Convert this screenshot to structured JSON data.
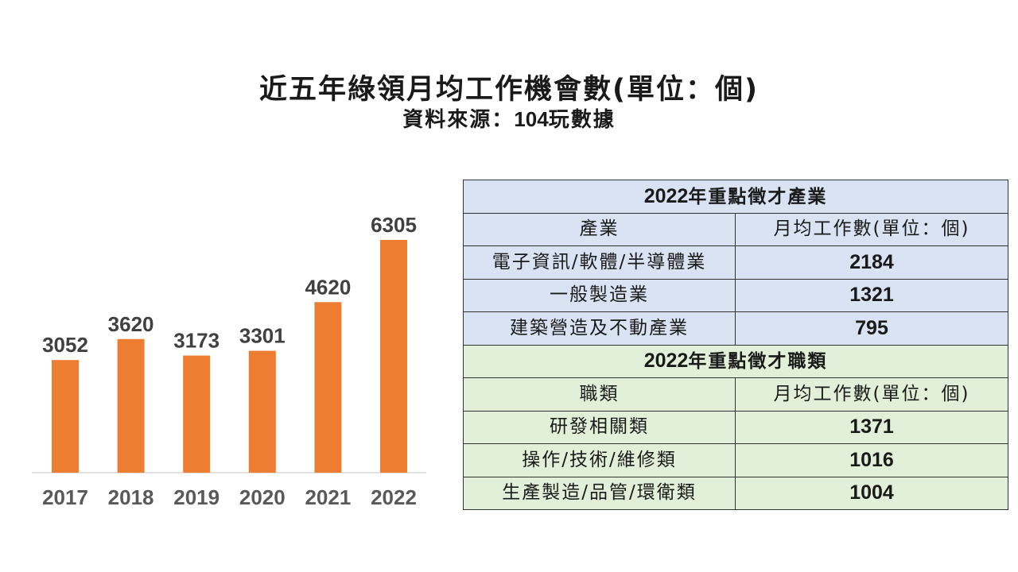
{
  "title": "近五年綠領月均工作機會數(單位：個)",
  "subtitle_prefix": "資料來源：",
  "subtitle_source": "104",
  "subtitle_suffix": "玩數據",
  "chart_data": {
    "type": "bar",
    "categories": [
      "2017",
      "2018",
      "2019",
      "2020",
      "2021",
      "2022"
    ],
    "values": [
      3052,
      3620,
      3173,
      3301,
      4620,
      6305
    ],
    "data_labels": [
      "3052",
      "3620",
      "3173",
      "3301",
      "4620",
      "6305"
    ],
    "bar_color": "#ed7d31",
    "grid": false,
    "legend": "none"
  },
  "table": {
    "industry_section": {
      "title_year": "2022",
      "title_text": "年重點徵才產業",
      "col1": "產業",
      "col2": "月均工作數(單位：個)",
      "rows": [
        {
          "name": "電子資訊/軟體/半導體業",
          "value": "2184"
        },
        {
          "name": "一般製造業",
          "value": "1321"
        },
        {
          "name": "建築營造及不動產業",
          "value": "795"
        }
      ]
    },
    "job_section": {
      "title_year": "2022",
      "title_text": "年重點徵才職類",
      "col1": "職類",
      "col2": "月均工作數(單位：個)",
      "rows": [
        {
          "name": "研發相關類",
          "value": "1371"
        },
        {
          "name": "操作/技術/維修類",
          "value": "1016"
        },
        {
          "name": "生產製造/品管/環衛類",
          "value": "1004"
        }
      ]
    },
    "colors": {
      "industry_bg": "#dae3f3",
      "job_bg": "#e2f0d9"
    }
  }
}
